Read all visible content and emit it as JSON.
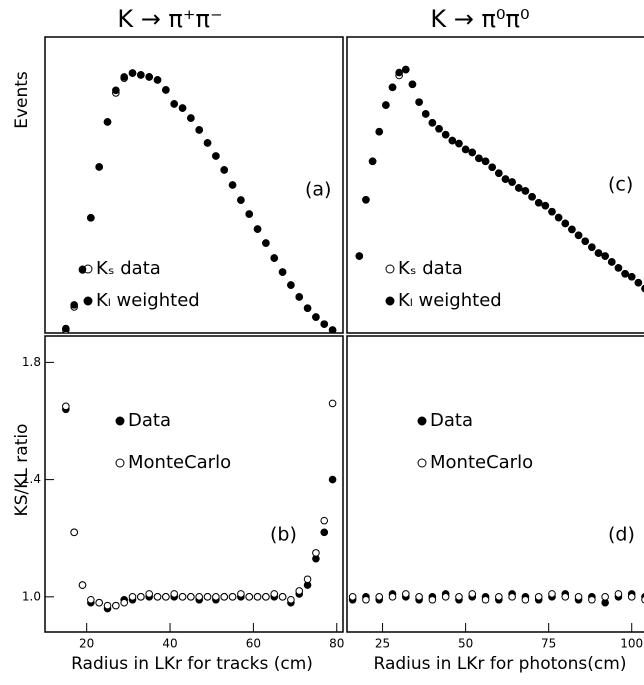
{
  "chart_data": [
    {
      "type": "scatter",
      "title": "K → π⁺π⁻",
      "y_label": "Events",
      "annotation": "(a)",
      "legend": "lower left",
      "xlim": [
        10,
        81.5
      ],
      "ylim": [
        0,
        100
      ],
      "x": [
        15,
        17,
        19,
        21,
        23,
        25,
        27,
        29,
        31,
        33,
        35,
        37,
        39,
        41,
        43,
        45,
        47,
        49,
        51,
        53,
        55,
        57,
        59,
        61,
        63,
        65,
        67,
        69,
        71,
        73,
        75,
        77,
        79
      ],
      "series": [
        {
          "name": "Kₛ data",
          "marker": "open",
          "color": "#000000",
          "values": [
            1,
            8.8,
            21.3,
            38.9,
            56.1,
            71.3,
            81.1,
            86.1,
            87.8,
            87.2,
            86.5,
            85.5,
            82.1,
            77.4,
            76,
            72.6,
            68.6,
            64.2,
            59.8,
            55.1,
            50,
            44.9,
            40.2,
            35.1,
            30.4,
            25.3,
            20.6,
            16.2,
            12.2,
            8.4,
            5.4,
            3,
            1
          ]
        },
        {
          "name": "Kₗ weighted",
          "marker": "filled",
          "color": "#000000",
          "values": [
            1.5,
            9.5,
            21.5,
            38.9,
            56.1,
            71.3,
            82,
            86.5,
            87.8,
            87.2,
            86.5,
            85.5,
            82.1,
            77.4,
            76,
            72.6,
            68.6,
            64.2,
            59.8,
            55.1,
            50,
            44.9,
            40.2,
            35.1,
            30.4,
            25.3,
            20.6,
            16.2,
            12.2,
            8.4,
            5.4,
            3,
            1
          ]
        }
      ]
    },
    {
      "type": "scatter",
      "y_label": "KS/KL ratio",
      "x_label": "Radius in LKr for tracks (cm)",
      "annotation": "(b)",
      "legend": "upper left",
      "xlim": [
        10,
        81.5
      ],
      "ylim": [
        0.88,
        1.89
      ],
      "xticks": [
        20,
        40,
        60,
        80
      ],
      "yticks": [
        {
          "value": 1,
          "label": "1.0"
        },
        1.4,
        1.8
      ],
      "x": [
        15,
        17,
        19,
        21,
        23,
        25,
        27,
        29,
        31,
        33,
        35,
        37,
        39,
        41,
        43,
        45,
        47,
        49,
        51,
        53,
        55,
        57,
        59,
        61,
        63,
        65,
        67,
        69,
        71,
        73,
        75,
        77,
        79
      ],
      "series": [
        {
          "name": "Data",
          "marker": "filled",
          "color": "#000000",
          "values": [
            1.64,
            1.22,
            1.04,
            0.98,
            0.98,
            0.96,
            0.97,
            0.99,
            0.99,
            1.0,
            1.0,
            1.0,
            1.0,
            1.0,
            1.0,
            1.0,
            0.99,
            1.0,
            0.99,
            1.0,
            1.0,
            1.0,
            1.0,
            1.0,
            1.0,
            1.0,
            1.0,
            0.98,
            1.01,
            1.04,
            1.13,
            1.22,
            1.4
          ]
        },
        {
          "name": "MonteCarlo",
          "marker": "open",
          "color": "#000000",
          "values": [
            1.65,
            1.22,
            1.04,
            0.99,
            0.98,
            0.97,
            0.97,
            0.98,
            1.0,
            1.0,
            1.01,
            1.0,
            1.0,
            1.01,
            1.0,
            1.0,
            1.0,
            1.0,
            1.0,
            1.0,
            1.0,
            1.01,
            1.0,
            1.0,
            1.0,
            1.01,
            1.0,
            0.99,
            1.02,
            1.06,
            1.15,
            1.26,
            1.66
          ]
        }
      ]
    },
    {
      "type": "scatter",
      "title": "K → π⁰π⁰",
      "annotation": "(c)",
      "legend": "lower left",
      "xlim": [
        14.3,
        105.5
      ],
      "ylim": [
        0,
        100
      ],
      "x": [
        18,
        20,
        22,
        24,
        26,
        28,
        30,
        32,
        34,
        36,
        38,
        40,
        42,
        44,
        46,
        48,
        50,
        52,
        54,
        56,
        58,
        60,
        62,
        64,
        66,
        68,
        70,
        72,
        74,
        76,
        78,
        80,
        82,
        84,
        86,
        88,
        90,
        92,
        94,
        96,
        98,
        100,
        102,
        104
      ],
      "series": [
        {
          "name": "Kₛ data",
          "marker": "open",
          "color": "#000000",
          "values": [
            26,
            45,
            58,
            68,
            77,
            83,
            87,
            89,
            84,
            78,
            74,
            71,
            69,
            67,
            65,
            64,
            62,
            61,
            59,
            58,
            56,
            54,
            52,
            51,
            49,
            48,
            46,
            44,
            43,
            41,
            39,
            37,
            35,
            33,
            31,
            29,
            27,
            26,
            24,
            22,
            20,
            19,
            17,
            15
          ]
        },
        {
          "name": "Kₗ weighted",
          "marker": "filled",
          "color": "#000000",
          "values": [
            26,
            45,
            58,
            68,
            77,
            83,
            88,
            89,
            84,
            78,
            74,
            71,
            69,
            67,
            65,
            64,
            62,
            61,
            59,
            58,
            56,
            54,
            52,
            51,
            49,
            48,
            46,
            44,
            43,
            41,
            39,
            37,
            35,
            33,
            31,
            29,
            27,
            26,
            24,
            22,
            20,
            19,
            17,
            15
          ]
        }
      ]
    },
    {
      "type": "scatter",
      "x_label": "Radius in LKr for photons(cm)",
      "annotation": "(d)",
      "legend": "upper left",
      "xlim": [
        14.3,
        105.5
      ],
      "ylim": [
        0.88,
        1.89
      ],
      "xticks": [
        25,
        50,
        75,
        100
      ],
      "x": [
        16,
        20,
        24,
        28,
        32,
        36,
        40,
        44,
        48,
        52,
        56,
        60,
        64,
        68,
        72,
        76,
        80,
        84,
        88,
        92,
        96,
        100,
        104
      ],
      "series": [
        {
          "name": "Data",
          "marker": "filled",
          "color": "#000000",
          "values": [
            0.99,
            1.0,
            0.99,
            1.01,
            1.0,
            0.99,
            1.0,
            1.01,
            0.99,
            1.0,
            1.0,
            0.99,
            1.01,
            1.0,
            0.99,
            1.0,
            1.01,
            0.99,
            1.0,
            0.98,
            1.0,
            1.01,
            1.0
          ]
        },
        {
          "name": "MonteCarlo",
          "marker": "open",
          "color": "#000000",
          "values": [
            1.0,
            0.99,
            1.0,
            1.0,
            1.01,
            1.0,
            0.99,
            1.0,
            1.0,
            1.01,
            0.99,
            1.0,
            1.0,
            0.99,
            1.0,
            1.01,
            1.0,
            1.0,
            0.99,
            1.0,
            1.01,
            1.0,
            0.99
          ]
        }
      ]
    }
  ]
}
